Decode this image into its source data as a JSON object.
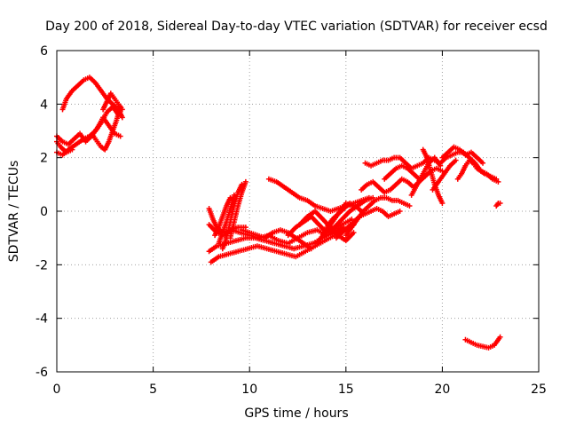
{
  "chart_data": {
    "type": "scatter",
    "title": "Day 200 of 2018, Sidereal Day-to-day VTEC variation (SDTVAR) for receiver ecsd",
    "xlabel": "GPS time / hours",
    "ylabel": "SDTVAR / TECUs",
    "xlim": [
      0,
      25
    ],
    "ylim": [
      -6,
      6
    ],
    "xticks": [
      0,
      5,
      10,
      15,
      20,
      25
    ],
    "yticks": [
      -6,
      -4,
      -2,
      0,
      2,
      4,
      6
    ],
    "xtick_labels": [
      "0",
      "5",
      "10",
      "15",
      "20",
      "25"
    ],
    "ytick_labels": [
      "-6",
      "-4",
      "-2",
      "0",
      "2",
      "4",
      "6"
    ],
    "grid": true,
    "marker": "+",
    "color": "#ff0000",
    "tracks": [
      {
        "x": [
          0.0,
          0.3,
          0.6,
          1.0,
          1.4,
          1.7,
          2.0,
          2.3,
          2.6,
          2.9,
          3.2
        ],
        "y": [
          2.2,
          2.1,
          2.3,
          2.5,
          2.7,
          2.8,
          3.0,
          3.3,
          3.7,
          3.9,
          3.6
        ]
      },
      {
        "x": [
          0.3,
          0.5,
          0.8,
          1.1,
          1.4,
          1.7,
          2.0,
          2.3,
          2.6,
          2.9,
          3.2,
          3.4
        ],
        "y": [
          3.8,
          4.2,
          4.5,
          4.7,
          4.9,
          5.0,
          4.8,
          4.5,
          4.2,
          4.0,
          3.8,
          3.5
        ]
      },
      {
        "x": [
          0.0,
          0.3,
          0.6,
          0.9,
          1.2,
          1.5,
          1.8,
          2.1,
          2.4,
          2.7,
          3.0,
          3.3
        ],
        "y": [
          2.8,
          2.6,
          2.5,
          2.7,
          2.9,
          2.6,
          2.8,
          3.1,
          3.5,
          3.2,
          2.9,
          2.8
        ]
      },
      {
        "x": [
          0.0,
          0.2,
          0.5,
          0.8
        ],
        "y": [
          2.6,
          2.4,
          2.2,
          2.3
        ]
      },
      {
        "x": [
          1.9,
          2.1,
          2.3,
          2.5,
          2.7,
          2.9,
          3.1,
          3.3
        ],
        "y": [
          2.8,
          2.6,
          2.4,
          2.3,
          2.6,
          3.0,
          3.4,
          3.9
        ]
      },
      {
        "x": [
          2.4,
          2.6,
          2.8,
          3.0,
          3.2,
          3.4
        ],
        "y": [
          3.8,
          4.1,
          4.4,
          4.2,
          4.0,
          3.8
        ]
      },
      {
        "x": [
          7.9,
          8.3,
          8.7,
          9.1,
          9.5,
          10.0,
          10.5,
          11.0,
          11.5,
          12.0,
          12.5,
          13.0,
          13.5,
          14.0,
          14.5,
          14.9
        ],
        "y": [
          -0.5,
          -0.8,
          -0.9,
          -0.7,
          -0.8,
          -0.9,
          -1.0,
          -0.9,
          -1.1,
          -1.2,
          -1.0,
          -0.8,
          -0.7,
          -0.9,
          -0.8,
          -0.6
        ]
      },
      {
        "x": [
          7.9,
          8.3,
          8.8,
          9.3,
          9.8,
          10.3,
          10.8,
          11.3,
          11.8,
          12.3,
          12.8,
          13.3,
          13.8,
          14.3,
          14.8,
          15.3
        ],
        "y": [
          -1.5,
          -1.3,
          -1.2,
          -1.1,
          -1.0,
          -1.0,
          -1.1,
          -1.2,
          -1.3,
          -1.4,
          -1.3,
          -1.2,
          -1.0,
          -0.8,
          -0.5,
          -0.3
        ]
      },
      {
        "x": [
          8.0,
          8.4,
          8.9,
          9.4,
          9.9,
          10.4,
          10.9,
          11.4,
          11.9,
          12.4,
          12.9,
          13.4,
          13.9,
          14.4,
          14.9,
          15.4
        ],
        "y": [
          -1.9,
          -1.7,
          -1.6,
          -1.5,
          -1.4,
          -1.3,
          -1.4,
          -1.5,
          -1.6,
          -1.7,
          -1.5,
          -1.3,
          -1.1,
          -0.9,
          -0.7,
          -0.5
        ]
      },
      {
        "x": [
          7.9,
          8.1,
          8.3,
          8.6,
          9.0,
          9.4,
          9.8
        ],
        "y": [
          0.1,
          -0.3,
          -0.6,
          -0.8,
          -0.7,
          -0.6,
          -0.6
        ]
      },
      {
        "x": [
          8.2,
          8.4,
          8.6,
          8.8,
          9.0
        ],
        "y": [
          -0.9,
          -0.6,
          -0.2,
          0.2,
          0.5
        ]
      },
      {
        "x": [
          8.4,
          8.6,
          8.8,
          9.0,
          9.2
        ],
        "y": [
          -1.2,
          -0.8,
          -0.4,
          0.1,
          0.6
        ]
      },
      {
        "x": [
          8.6,
          8.8,
          9.0,
          9.2,
          9.4,
          9.6
        ],
        "y": [
          -1.4,
          -1.0,
          -0.4,
          0.2,
          0.7,
          1.0
        ]
      },
      {
        "x": [
          9.0,
          9.2,
          9.4,
          9.6,
          9.8
        ],
        "y": [
          -1.0,
          -0.4,
          0.2,
          0.7,
          1.1
        ]
      },
      {
        "x": [
          9.6,
          10.0,
          10.4,
          10.8,
          11.2,
          11.6,
          12.0,
          12.4,
          12.8,
          13.2
        ],
        "y": [
          -0.7,
          -0.8,
          -0.9,
          -1.0,
          -0.8,
          -0.7,
          -0.8,
          -1.0,
          -1.2,
          -1.4
        ]
      },
      {
        "x": [
          11.0,
          11.4,
          11.8,
          12.2,
          12.6,
          13.0,
          13.4,
          13.8,
          14.2,
          14.6,
          15.0,
          15.4,
          15.8,
          16.2
        ],
        "y": [
          1.2,
          1.1,
          0.9,
          0.7,
          0.5,
          0.4,
          0.2,
          0.1,
          0.0,
          0.1,
          0.2,
          0.3,
          0.4,
          0.5
        ]
      },
      {
        "x": [
          12.0,
          12.4,
          12.8,
          13.2,
          13.6,
          14.0,
          14.4,
          14.8,
          15.2,
          15.6,
          16.0,
          16.4
        ],
        "y": [
          -0.9,
          -0.6,
          -0.4,
          -0.2,
          -0.5,
          -0.8,
          -0.6,
          -0.3,
          0.0,
          0.2,
          0.4,
          0.5
        ]
      },
      {
        "x": [
          12.6,
          13.0,
          13.4,
          13.8,
          14.2,
          14.6,
          15.0,
          15.4
        ],
        "y": [
          -0.5,
          -0.2,
          0.0,
          -0.3,
          -0.6,
          -0.9,
          -1.1,
          -0.8
        ]
      },
      {
        "x": [
          13.5,
          13.8,
          14.1,
          14.4,
          14.7,
          15.0,
          15.3
        ],
        "y": [
          -1.2,
          -0.9,
          -0.6,
          -0.3,
          0.0,
          0.3,
          0.2
        ]
      },
      {
        "x": [
          14.0,
          14.3,
          14.6,
          14.9,
          15.2,
          15.5,
          15.8
        ],
        "y": [
          -0.6,
          -0.3,
          -0.1,
          0.1,
          0.3,
          0.2,
          0.0
        ]
      },
      {
        "x": [
          14.5,
          14.8,
          15.1,
          15.4,
          15.7,
          16.0,
          16.3,
          16.6,
          16.9,
          17.2,
          17.5,
          17.8
        ],
        "y": [
          -1.0,
          -0.8,
          -0.6,
          -0.4,
          -0.2,
          -0.1,
          0.0,
          0.1,
          0.0,
          -0.2,
          -0.1,
          0.0
        ]
      },
      {
        "x": [
          15.0,
          15.3,
          15.6,
          15.9,
          16.2,
          16.5,
          16.8,
          17.1,
          17.4,
          17.7,
          18.0,
          18.3
        ],
        "y": [
          -0.9,
          -0.6,
          -0.3,
          0.0,
          0.2,
          0.4,
          0.5,
          0.5,
          0.4,
          0.4,
          0.3,
          0.2
        ]
      },
      {
        "x": [
          15.8,
          16.1,
          16.4,
          16.7,
          17.0,
          17.3,
          17.6,
          17.9,
          18.2,
          18.5,
          18.8,
          19.1
        ],
        "y": [
          0.8,
          1.0,
          1.1,
          0.9,
          0.7,
          0.8,
          1.0,
          1.2,
          1.1,
          0.9,
          1.1,
          1.3
        ]
      },
      {
        "x": [
          16.0,
          16.3,
          16.6,
          16.9,
          17.2,
          17.5,
          17.8,
          18.1,
          18.4,
          18.7,
          19.0,
          19.3,
          19.6,
          19.9,
          20.2,
          20.5,
          20.8,
          21.1,
          21.4,
          21.7,
          22.0,
          22.3,
          22.6,
          22.9
        ],
        "y": [
          1.8,
          1.7,
          1.8,
          1.9,
          1.9,
          2.0,
          2.0,
          1.8,
          1.6,
          1.7,
          1.8,
          2.0,
          1.9,
          1.8,
          2.0,
          2.1,
          2.2,
          2.2,
          2.0,
          1.8,
          1.5,
          1.4,
          1.2,
          1.1
        ]
      },
      {
        "x": [
          17.0,
          17.3,
          17.6,
          17.9,
          18.2,
          18.5,
          18.8,
          19.1,
          19.4,
          19.7,
          20.0
        ],
        "y": [
          1.2,
          1.4,
          1.6,
          1.7,
          1.6,
          1.4,
          1.2,
          1.3,
          1.5,
          1.6,
          1.5
        ]
      },
      {
        "x": [
          18.4,
          18.7,
          19.0,
          19.3,
          19.6,
          19.9
        ],
        "y": [
          0.6,
          1.0,
          1.4,
          1.8,
          2.0,
          1.7
        ]
      },
      {
        "x": [
          19.0,
          19.2,
          19.4,
          19.6,
          19.8,
          20.0
        ],
        "y": [
          2.3,
          2.0,
          1.5,
          1.0,
          0.6,
          0.3
        ]
      },
      {
        "x": [
          19.5,
          19.8,
          20.1,
          20.4,
          20.7
        ],
        "y": [
          0.8,
          1.1,
          1.4,
          1.7,
          1.9
        ]
      },
      {
        "x": [
          20.0,
          20.3,
          20.6,
          20.9,
          21.2,
          21.5,
          21.8,
          22.1
        ],
        "y": [
          2.0,
          2.2,
          2.4,
          2.3,
          2.1,
          2.2,
          2.0,
          1.8
        ]
      },
      {
        "x": [
          20.8,
          21.0,
          21.2,
          21.4,
          21.6,
          21.8,
          22.0,
          22.2,
          22.5,
          22.8
        ],
        "y": [
          1.2,
          1.4,
          1.7,
          1.9,
          1.8,
          1.6,
          1.5,
          1.4,
          1.3,
          1.2
        ]
      },
      {
        "x": [
          21.2,
          21.5,
          21.8,
          22.1,
          22.4,
          22.7,
          23.0
        ],
        "y": [
          -4.8,
          -4.9,
          -5.0,
          -5.05,
          -5.1,
          -5.0,
          -4.7
        ]
      },
      {
        "x": [
          22.8,
          22.9,
          23.0
        ],
        "y": [
          0.2,
          0.3,
          0.3
        ]
      }
    ]
  }
}
